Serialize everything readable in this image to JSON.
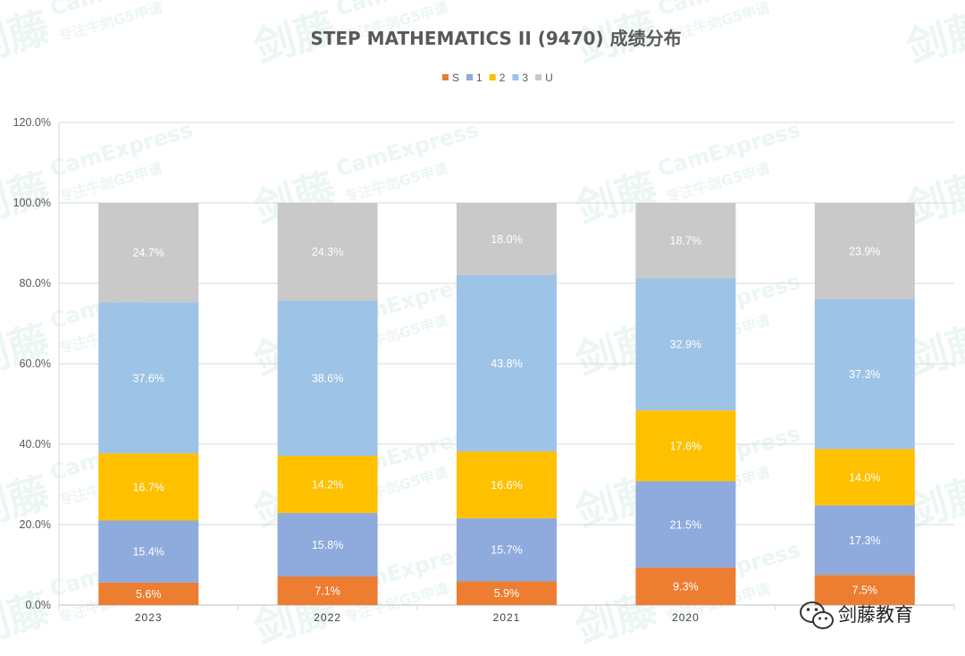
{
  "chart_data": {
    "type": "bar",
    "stacked": true,
    "title": "STEP MATHEMATICS II (9470) 成绩分布",
    "categories": [
      "2023",
      "2022",
      "2021",
      "2020",
      ""
    ],
    "ylim": [
      0,
      120
    ],
    "yticks": [
      "0.0%",
      "20.0%",
      "40.0%",
      "60.0%",
      "80.0%",
      "100.0%",
      "120.0%"
    ],
    "grid": true,
    "legend_position": "top",
    "series": [
      {
        "name": "S",
        "color": "#ed7d31",
        "values": [
          5.6,
          7.1,
          5.9,
          9.3,
          7.5
        ],
        "labels": [
          "5.6%",
          "7.1%",
          "5.9%",
          "9.3%",
          "7.5%"
        ]
      },
      {
        "name": "1",
        "color": "#8faadc",
        "values": [
          15.4,
          15.8,
          15.7,
          21.5,
          17.3
        ],
        "labels": [
          "15.4%",
          "15.8%",
          "15.7%",
          "21.5%",
          "17.3%"
        ]
      },
      {
        "name": "2",
        "color": "#ffc000",
        "values": [
          16.7,
          14.2,
          16.6,
          17.6,
          14.0
        ],
        "labels": [
          "16.7%",
          "14.2%",
          "16.6%",
          "17.6%",
          "14.0%"
        ]
      },
      {
        "name": "3",
        "color": "#9dc3e6",
        "values": [
          37.6,
          38.6,
          43.8,
          32.9,
          37.3
        ],
        "labels": [
          "37.6%",
          "38.6%",
          "43.8%",
          "32.9%",
          "37.3%"
        ]
      },
      {
        "name": "U",
        "color": "#c9c9c9",
        "values": [
          24.7,
          24.3,
          18.0,
          18.7,
          23.9
        ],
        "labels": [
          "24.7%",
          "24.3%",
          "18.0%",
          "18.7%",
          "23.9%"
        ]
      }
    ]
  },
  "watermark": {
    "brand": "剑藤",
    "latin": "CamExpress",
    "tagline": "专注牛剑G5申请"
  },
  "brand_badge": {
    "text": "剑藤教育",
    "icon": "wechat-icon"
  }
}
